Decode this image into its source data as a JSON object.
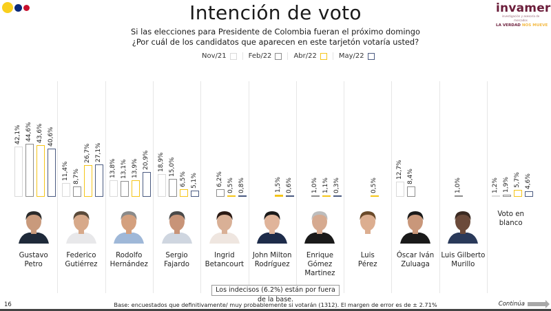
{
  "header": {
    "title": "Intención de voto",
    "subtitle_line1": "Si las elecciones para Presidente de Colombia fueran el próximo domingo",
    "subtitle_line2": "¿Por cuál de los candidatos que aparecen en este tarjetón votaría usted?",
    "flag_colors": [
      "#f9cf1d",
      "#0a2a7a",
      "#c8102e"
    ]
  },
  "logo": {
    "word": "invamer",
    "sub": "investigación y asesoría de mercados",
    "tag_part1": "LA VERDAD",
    "tag_part2": "NOS MUEVE"
  },
  "chart_data": {
    "type": "bar",
    "title": "Intención de voto",
    "value_format": "percent_comma_decimal",
    "ylim": [
      0,
      50
    ],
    "grid": false,
    "legend_position": "top-center",
    "series": [
      {
        "name": "Nov/21",
        "color": "#d9d9d9"
      },
      {
        "name": "Feb/22",
        "color": "#8c8c8c"
      },
      {
        "name": "Abr/22",
        "color": "#f5c518"
      },
      {
        "name": "May/22",
        "color": "#4a5a80"
      }
    ],
    "categories": [
      {
        "name_line1": "Gustavo",
        "name_line2": "Petro",
        "photo": "candidate-photo",
        "values": [
          42.1,
          44.6,
          43.6,
          40.6
        ]
      },
      {
        "name_line1": "Federico",
        "name_line2": "Gutiérrez",
        "photo": "candidate-photo",
        "values": [
          11.4,
          8.7,
          26.7,
          27.1
        ]
      },
      {
        "name_line1": "Rodolfo",
        "name_line2": "Hernández",
        "photo": "candidate-photo",
        "values": [
          13.8,
          13.1,
          13.9,
          20.9
        ]
      },
      {
        "name_line1": "Sergio",
        "name_line2": "Fajardo",
        "photo": "candidate-photo",
        "values": [
          18.9,
          15.0,
          6.5,
          5.1
        ]
      },
      {
        "name_line1": "Ingrid",
        "name_line2": "Betancourt",
        "photo": "candidate-photo",
        "values": [
          null,
          6.2,
          0.5,
          0.8
        ]
      },
      {
        "name_line1": "John Milton",
        "name_line2": "Rodríguez",
        "photo": "candidate-photo",
        "values": [
          null,
          null,
          1.5,
          0.6
        ]
      },
      {
        "name_line1": "Enrique Gómez",
        "name_line2": "Martinez",
        "photo": "candidate-photo",
        "values": [
          null,
          1.0,
          1.1,
          0.3
        ]
      },
      {
        "name_line1": "Luis",
        "name_line2": "Pérez",
        "photo": "candidate-photo",
        "values": [
          null,
          null,
          0.5,
          null
        ]
      },
      {
        "name_line1": "Óscar Iván",
        "name_line2": "Zuluaga",
        "photo": "candidate-photo",
        "values": [
          12.7,
          8.4,
          null,
          null
        ]
      },
      {
        "name_line1": "Luis Gilberto",
        "name_line2": "Murillo",
        "photo": "candidate-photo",
        "values": [
          null,
          1.0,
          null,
          null
        ]
      },
      {
        "name_line1": "Voto en",
        "name_line2": "blanco",
        "photo": null,
        "values": [
          1.2,
          1.9,
          5.7,
          4.6
        ]
      }
    ]
  },
  "footer": {
    "note": "Los indecisos (6.2%) están por fuera de la base.",
    "page_number": "16",
    "base_text": "Base: encuestados que definitivamente/ muy probablemente si votarán (1312). El margen de error es de ± 2.71%",
    "continue_label": "Continúa",
    "continue_icon": "arrow-right-icon"
  }
}
